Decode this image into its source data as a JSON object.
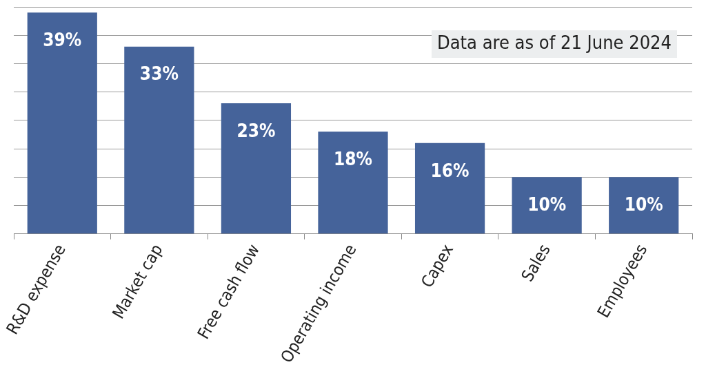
{
  "chart_data": {
    "type": "bar",
    "categories": [
      "R&D expense",
      "Market cap",
      "Free cash flow",
      "Operating income",
      "Capex",
      "Sales",
      "Employees"
    ],
    "values": [
      39,
      33,
      23,
      18,
      16,
      10,
      10
    ],
    "color": "#45639a",
    "value_labels": [
      "39%",
      "33%",
      "23%",
      "18%",
      "16%",
      "10%",
      "10%"
    ],
    "ylim": [
      0,
      40
    ],
    "yticks": [
      {
        "value": 0,
        "label": null
      },
      {
        "value": 5,
        "label": null
      },
      {
        "value": 10,
        "label": null
      },
      {
        "value": 15,
        "label": null
      },
      {
        "value": 20,
        "label": null
      },
      {
        "value": 25,
        "label": null
      },
      {
        "value": 30,
        "label": null
      },
      {
        "value": 35,
        "label": null
      },
      {
        "value": 40,
        "label": null
      }
    ],
    "grid": "y",
    "tick_labels": "x",
    "annotations": [
      "Data are as of 21 June 2024"
    ]
  }
}
